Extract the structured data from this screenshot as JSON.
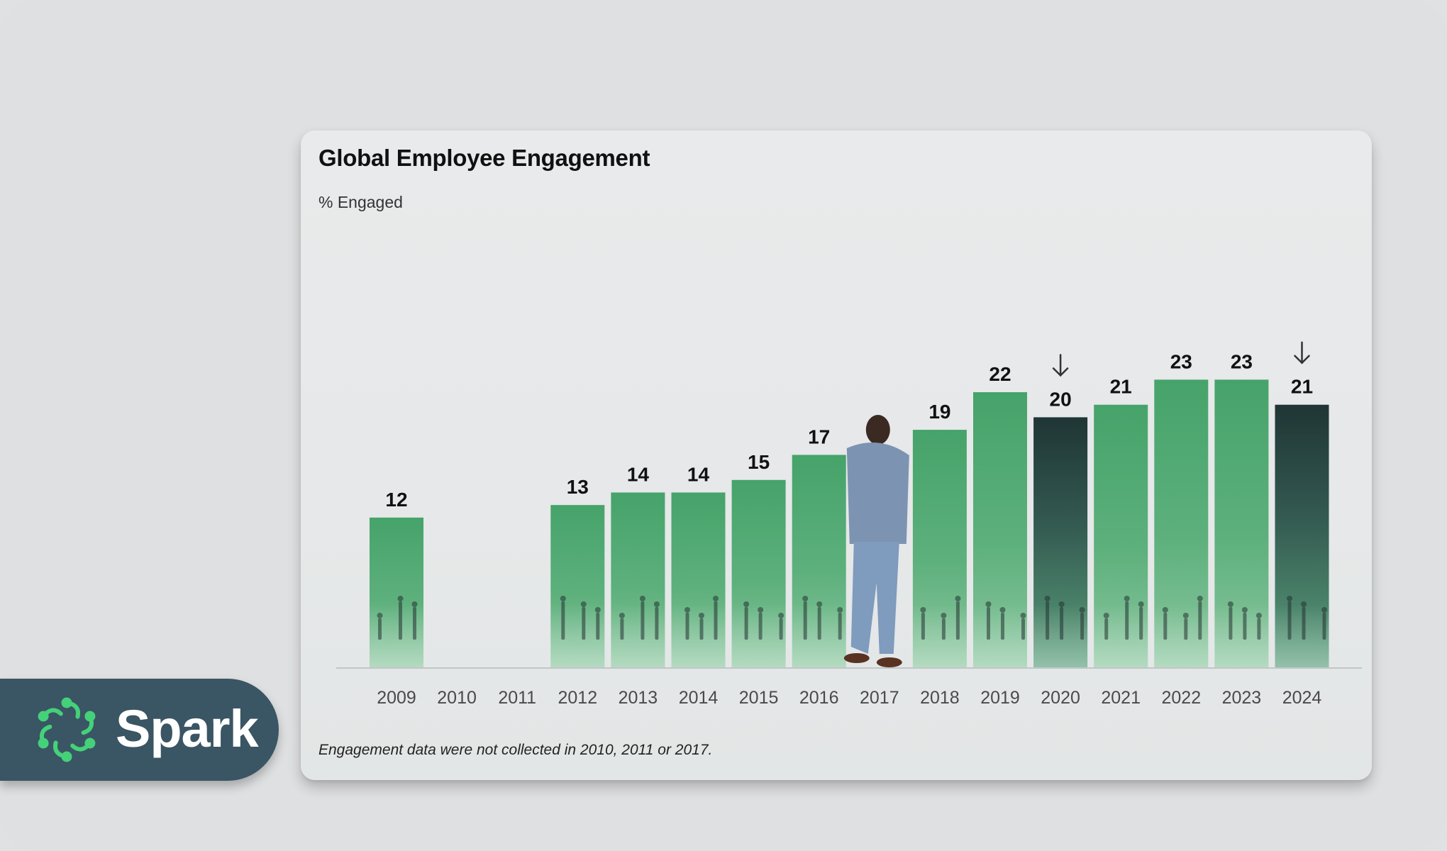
{
  "chart_data": {
    "type": "bar",
    "title": "Global Employee Engagement",
    "ylabel": "% Engaged",
    "categories": [
      "2009",
      "2010",
      "2011",
      "2012",
      "2013",
      "2014",
      "2015",
      "2016",
      "2017",
      "2018",
      "2019",
      "2020",
      "2021",
      "2022",
      "2023",
      "2024"
    ],
    "values": [
      12,
      null,
      null,
      13,
      14,
      14,
      15,
      17,
      null,
      19,
      22,
      20,
      21,
      23,
      23,
      21
    ],
    "value_labels": [
      "12",
      "",
      "",
      "13",
      "14",
      "14",
      "15",
      "17",
      "",
      "19",
      "22",
      "20",
      "21",
      "23",
      "23",
      "21"
    ],
    "decline_markers": [
      "2020",
      "2024"
    ],
    "ylim": [
      0,
      23
    ],
    "footnote": "Engagement data were not collected in 2010, 2011 or 2017.",
    "colors": {
      "bar_light": "#46a36a",
      "bar_dark": "#8cc7a0",
      "decline_bar_top": "#1f3535",
      "decline_bar_bottom": "#5aa07c"
    }
  },
  "brand": {
    "name": "Spark",
    "logo_icon": "spark-logo-icon",
    "logo_color": "#44d17a",
    "background": "#3a5563"
  }
}
